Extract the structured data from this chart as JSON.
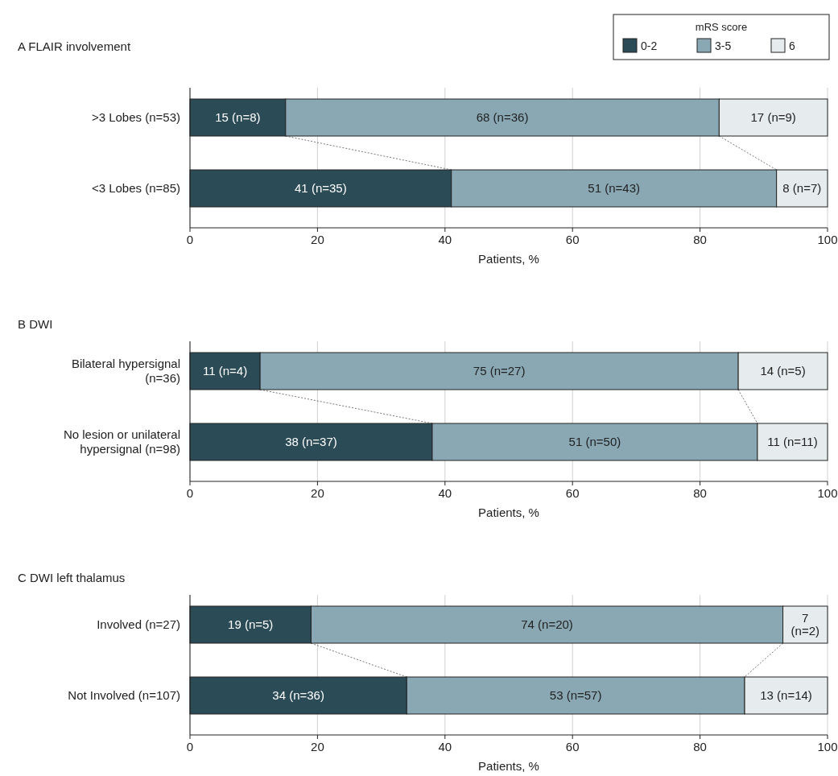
{
  "chart_data": [
    {
      "type": "bar",
      "orientation": "horizontal",
      "stacked": true,
      "title": "A  FLAIR involvement",
      "categories": [
        ">3 Lobes (n=53)",
        "<3 Lobes (n=85)"
      ],
      "series": [
        {
          "name": "0-2",
          "color": "#2b4b57",
          "values": [
            15,
            41
          ],
          "value_labels": [
            "15 (n=8)",
            "41 (n=35)"
          ]
        },
        {
          "name": "3-5",
          "color": "#8aa8b4",
          "values": [
            68,
            51
          ],
          "value_labels": [
            "68 (n=36)",
            "51 (n=43)"
          ]
        },
        {
          "name": "6",
          "color": "#e6ebed",
          "values": [
            17,
            8
          ],
          "value_labels": [
            "17 (n=9)",
            "8 (n=7)"
          ]
        }
      ],
      "xlim": [
        0,
        100
      ],
      "xticks": [
        0,
        20,
        40,
        60,
        80,
        100
      ],
      "xlabel": "Patients, %",
      "grid": "x",
      "legend": "top right",
      "legend_title": "mRS score"
    },
    {
      "type": "bar",
      "orientation": "horizontal",
      "stacked": true,
      "title": "B  DWI",
      "categories": [
        "Bilateral hypersignal (n=36)",
        "No lesion or unilateral hypersignal (n=98)"
      ],
      "series": [
        {
          "color": "#2b4b57",
          "values": [
            11,
            38
          ],
          "value_labels": [
            "11 (n=4)",
            "38 (n=37)"
          ]
        },
        {
          "color": "#8aa8b4",
          "values": [
            75,
            51
          ],
          "value_labels": [
            "75 (n=27)",
            "51 (n=50)"
          ]
        },
        {
          "color": "#e6ebed",
          "values": [
            14,
            11
          ],
          "value_labels": [
            "14 (n=5)",
            "11 (n=11)"
          ]
        }
      ],
      "xlim": [
        0,
        100
      ],
      "xticks": [
        0,
        20,
        40,
        60,
        80,
        100
      ],
      "xlabel": "Patients, %",
      "grid": "x"
    },
    {
      "type": "bar",
      "orientation": "horizontal",
      "stacked": true,
      "title": "C  DWI left thalamus",
      "categories": [
        "Involved (n=27)",
        "Not Involved (n=107)"
      ],
      "series": [
        {
          "color": "#2b4b57",
          "values": [
            19,
            34
          ],
          "value_labels": [
            "19 (n=5)",
            "34 (n=36)"
          ]
        },
        {
          "color": "#8aa8b4",
          "values": [
            74,
            53
          ],
          "value_labels": [
            "74 (n=20)",
            "53 (n=57)"
          ]
        },
        {
          "color": "#e6ebed",
          "values": [
            7,
            13
          ],
          "value_labels": [
            "7 (n=2)",
            "13 (n=14)"
          ]
        }
      ],
      "xlim": [
        0,
        100
      ],
      "xticks": [
        0,
        20,
        40,
        60,
        80,
        100
      ],
      "xlabel": "Patients, %",
      "grid": "x"
    }
  ]
}
